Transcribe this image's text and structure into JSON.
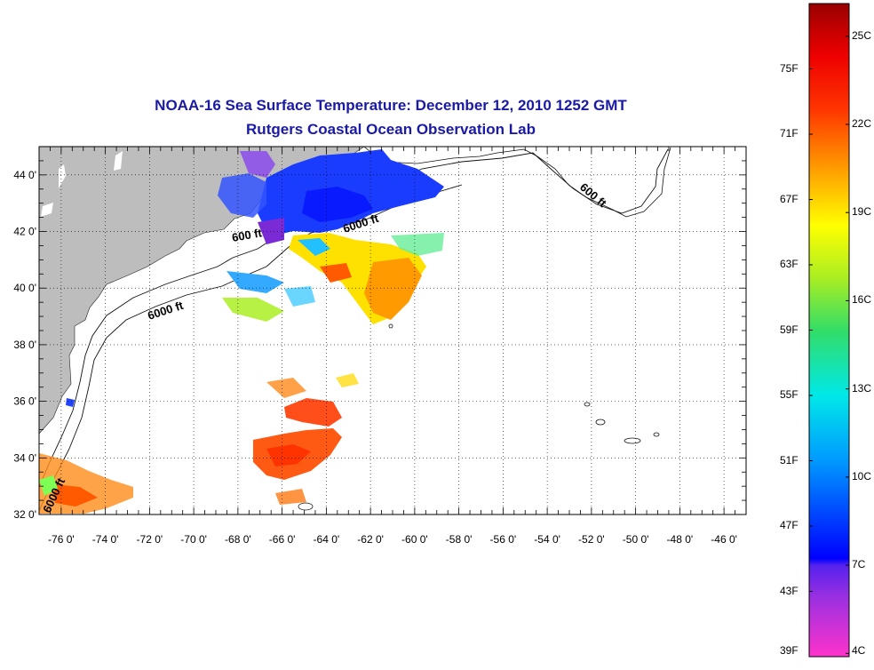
{
  "title": {
    "line1": "NOAA-16 Sea Surface Temperature:  December 12, 2010 1252 GMT",
    "line2": "Rutgers Coastal Ocean Observation Lab"
  },
  "map": {
    "lon_range": [
      -77,
      -45
    ],
    "lat_range": [
      32,
      45
    ],
    "lon_ticks": [
      "-76 0'",
      "-74 0'",
      "-72 0'",
      "-70 0'",
      "-68 0'",
      "-66 0'",
      "-64 0'",
      "-62 0'",
      "-60 0'",
      "-58 0'",
      "-56 0'",
      "-54 0'",
      "-52 0'",
      "-50 0'",
      "-48 0'",
      "-46 0'"
    ],
    "lat_ticks": [
      "32 0'",
      "34 0'",
      "36 0'",
      "38 0'",
      "40 0'",
      "42 0'",
      "44 0'"
    ],
    "contour_labels": [
      "600 ft",
      "6000 ft",
      "6000 ft",
      "600 ft",
      "6000 ft"
    ],
    "land_color": "#bdbdbd",
    "grid": "dotted"
  },
  "colorbar": {
    "colors": [
      "#ff33cc",
      "#7a2bd6",
      "#0000ff",
      "#00aaff",
      "#00e5e5",
      "#33dd66",
      "#aaee22",
      "#ffff00",
      "#ff9900",
      "#ff4400",
      "#ff0000",
      "#990000"
    ],
    "fahrenheit_labels": [
      "39F",
      "43F",
      "47F",
      "51F",
      "55F",
      "59F",
      "63F",
      "67F",
      "71F",
      "75F"
    ],
    "celsius_labels": [
      "4C",
      "7C",
      "10C",
      "13C",
      "16C",
      "19C",
      "22C",
      "25C"
    ]
  }
}
